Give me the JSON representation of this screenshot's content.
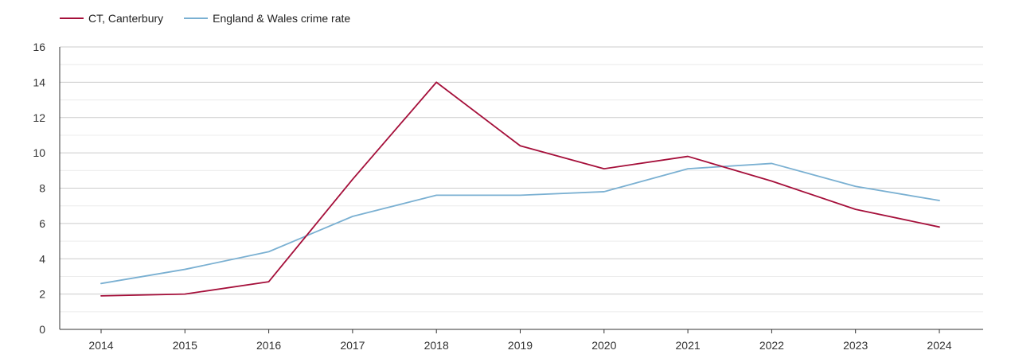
{
  "chart_data": {
    "type": "line",
    "categories": [
      "2014",
      "2015",
      "2016",
      "2017",
      "2018",
      "2019",
      "2020",
      "2021",
      "2022",
      "2023",
      "2024"
    ],
    "series": [
      {
        "name": "CT, Canterbury",
        "color": "#a50f3a",
        "values": [
          1.9,
          2.0,
          2.7,
          8.5,
          14.0,
          10.4,
          9.1,
          9.8,
          8.4,
          6.8,
          5.8
        ]
      },
      {
        "name": "England & Wales crime rate",
        "color": "#7ab0d2",
        "values": [
          2.6,
          3.4,
          4.4,
          6.4,
          7.6,
          7.6,
          7.8,
          9.1,
          9.4,
          8.1,
          7.3
        ]
      }
    ],
    "ylim": [
      0,
      16
    ],
    "yticks": [
      0,
      2,
      4,
      6,
      8,
      10,
      12,
      14,
      16
    ],
    "grid": true,
    "legend_position": "top-left"
  }
}
